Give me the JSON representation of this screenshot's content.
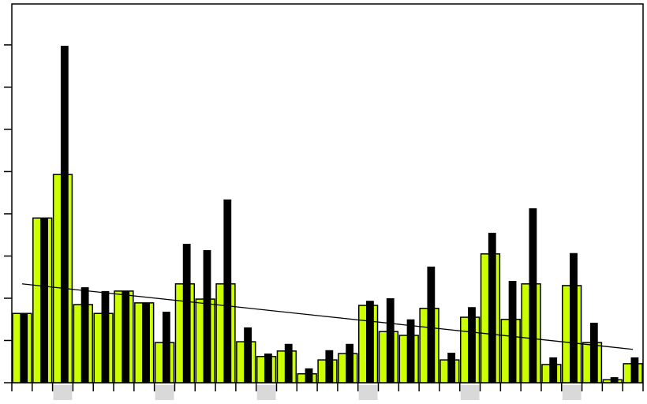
{
  "chart_data": {
    "type": "bar",
    "categories": [
      null,
      null,
      null,
      null,
      null,
      null,
      null,
      null,
      null,
      null,
      null,
      null,
      null,
      null,
      null,
      null,
      null,
      null,
      null,
      null,
      null,
      null,
      null,
      null,
      null,
      null,
      null,
      null,
      null,
      null,
      null
    ],
    "series": [
      {
        "color": "#ccff00",
        "values": [
          1.64,
          3.9,
          4.93,
          1.85,
          1.64,
          2.17,
          1.89,
          0.95,
          2.34,
          1.98,
          2.34,
          0.97,
          0.62,
          0.75,
          0.21,
          0.54,
          0.69,
          1.83,
          1.21,
          1.12,
          1.76,
          0.54,
          1.55,
          3.05,
          1.5,
          2.34,
          0.43,
          2.3,
          0.95,
          0.07,
          0.45
        ]
      },
      {
        "color": "#000000",
        "values": [
          1.64,
          3.9,
          7.98,
          2.26,
          2.17,
          2.17,
          1.89,
          1.68,
          3.29,
          3.14,
          4.34,
          1.31,
          0.69,
          0.92,
          0.34,
          0.77,
          0.92,
          1.94,
          2.0,
          1.5,
          2.75,
          0.71,
          1.79,
          3.55,
          2.41,
          4.13,
          0.6,
          3.07,
          1.42,
          0.13,
          0.6
        ]
      }
    ],
    "trend": {
      "start": 2.34,
      "end": 0.79,
      "color": "#000000"
    },
    "highlighted": [
      2,
      7,
      12,
      17,
      22,
      27
    ],
    "highlight_color": "#d9d9d9",
    "ylim": [
      0,
      8.97
    ],
    "yticks": [
      0,
      1,
      2,
      3,
      4,
      5,
      6,
      7,
      8
    ],
    "grid": false
  }
}
